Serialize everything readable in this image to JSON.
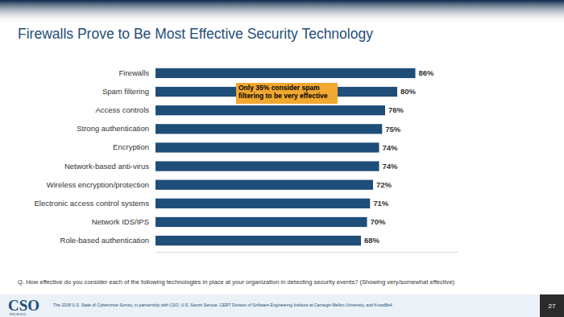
{
  "chart_data": {
    "type": "bar",
    "orientation": "horizontal",
    "title": "Firewalls Prove to Be Most Effective Security Technology",
    "categories": [
      "Firewalls",
      "Spam filtering",
      "Access controls",
      "Strong authentication",
      "Encryption",
      "Network-based anti-virus",
      "Wireless encryption/protection",
      "Electronic access control systems",
      "Network IDS/IPS",
      "Role-based authentication"
    ],
    "values": [
      86,
      80,
      76,
      75,
      74,
      74,
      72,
      71,
      70,
      68
    ],
    "value_labels": [
      "86%",
      "80%",
      "76%",
      "75%",
      "74%",
      "74%",
      "72%",
      "71%",
      "70%",
      "68%"
    ],
    "color": "#1f4e79",
    "xlim": [
      0,
      100
    ],
    "data_labels": true,
    "tick_labels": "y",
    "grid": false,
    "annotation": "Only 35% consider spam filtering to be very effective",
    "note": "Q. How effective do you consider each of the following technologies in place at your organization in detecting security events? (Showing very/somewhat effective)",
    "source": "The 2018 U.S. State of Cybercrime Survey, in partnership with CSO, U.S. Secret Service, CERT Division of Software Engineering Institute at Carnegie Mellon University, and KnowBe4",
    "logo": "CSO",
    "logo_subtitle": "FROM IDG",
    "page_number": "27"
  }
}
